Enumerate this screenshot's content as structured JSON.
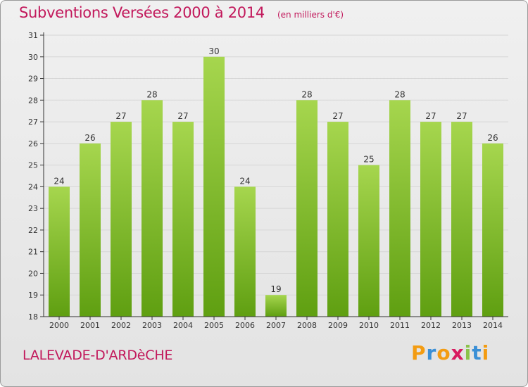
{
  "header": {
    "title": "Subventions Versées 2000 à 2014",
    "subtitle": "(en milliers d'€)"
  },
  "footer": {
    "commune": "LALEVADE-D'ARDèCHE",
    "logo_text": "Proxiti"
  },
  "colors": {
    "title": "#c2185b",
    "bar_top": "#a6d64e",
    "bar_bottom": "#5f9f11",
    "axis": "#333333",
    "grid": "#d6d6d6",
    "logo_letters": [
      "#f39c12",
      "#3a8fd6",
      "#f39c12",
      "#d81b60",
      "#8bc34a",
      "#3a8fd6",
      "#f39c12"
    ]
  },
  "chart_data": {
    "type": "bar",
    "categories": [
      "2000",
      "2001",
      "2002",
      "2003",
      "2004",
      "2005",
      "2006",
      "2007",
      "2008",
      "2009",
      "2010",
      "2011",
      "2012",
      "2013",
      "2014"
    ],
    "values": [
      24,
      26,
      27,
      28,
      27,
      30,
      24,
      19,
      28,
      27,
      25,
      28,
      27,
      27,
      26
    ],
    "title": "Subventions Versées 2000 à 2014",
    "subtitle": "(en milliers d'€)",
    "xlabel": "",
    "ylabel": "",
    "ylim": [
      18,
      31
    ],
    "yticks": [
      18,
      19,
      20,
      21,
      22,
      23,
      24,
      25,
      26,
      27,
      28,
      29,
      30,
      31
    ],
    "grid": true,
    "legend": "none",
    "data_labels": true
  }
}
